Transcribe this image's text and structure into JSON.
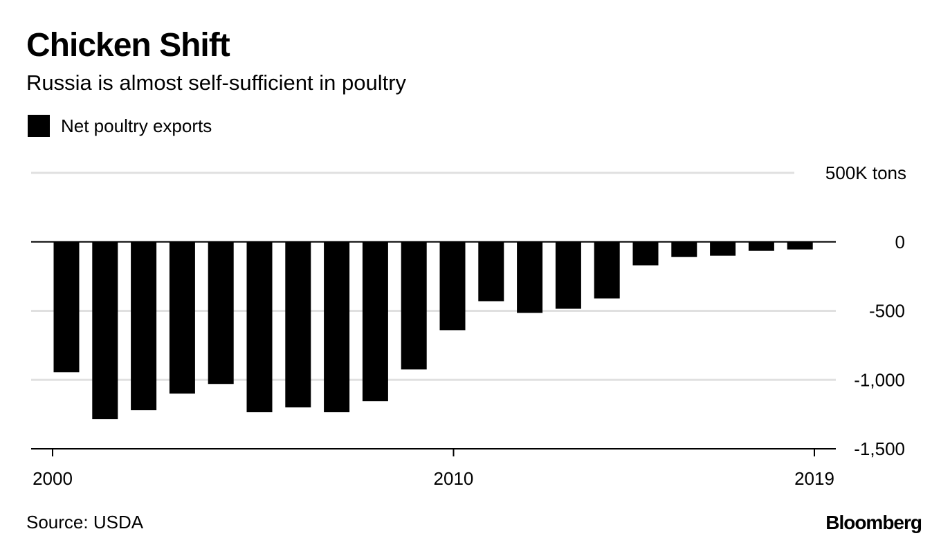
{
  "header": {
    "title": "Chicken Shift",
    "subtitle": "Russia is almost self-sufficient in poultry"
  },
  "legend": {
    "label": "Net poultry exports"
  },
  "footer": {
    "source": "Source: USDA",
    "brand": "Bloomberg"
  },
  "colors": {
    "bar": "#000000",
    "grid": "#e0e0e0",
    "zero_line": "#000000"
  },
  "chart_data": {
    "type": "bar",
    "title": "Chicken Shift",
    "subtitle": "Russia is almost self-sufficient in poultry",
    "xlabel": "",
    "ylabel": "",
    "unit_label": "500K tons",
    "ylim": [
      -1500,
      500
    ],
    "grid": true,
    "legend_position": "top-left",
    "y_axis_position": "right",
    "y_ticks": [
      {
        "value": 500,
        "label": "500K tons"
      },
      {
        "value": 0,
        "label": "0"
      },
      {
        "value": -500,
        "label": "-500"
      },
      {
        "value": -1000,
        "label": "-1,000"
      },
      {
        "value": -1500,
        "label": "-1,500"
      }
    ],
    "x_tick_labels": [
      {
        "year": 2000,
        "label": "2000"
      },
      {
        "year": 2010,
        "label": "2010"
      },
      {
        "year": 2019,
        "label": "2019"
      }
    ],
    "categories": [
      2000,
      2001,
      2002,
      2003,
      2004,
      2005,
      2006,
      2007,
      2008,
      2009,
      2010,
      2011,
      2012,
      2013,
      2014,
      2015,
      2016,
      2017,
      2018,
      2019
    ],
    "series": [
      {
        "name": "Net poultry exports",
        "values": [
          -945,
          -1285,
          -1220,
          -1100,
          -1030,
          -1235,
          -1200,
          -1235,
          -1155,
          -925,
          -640,
          -430,
          -515,
          -485,
          -410,
          -170,
          -110,
          -100,
          -65,
          -55
        ]
      }
    ]
  }
}
